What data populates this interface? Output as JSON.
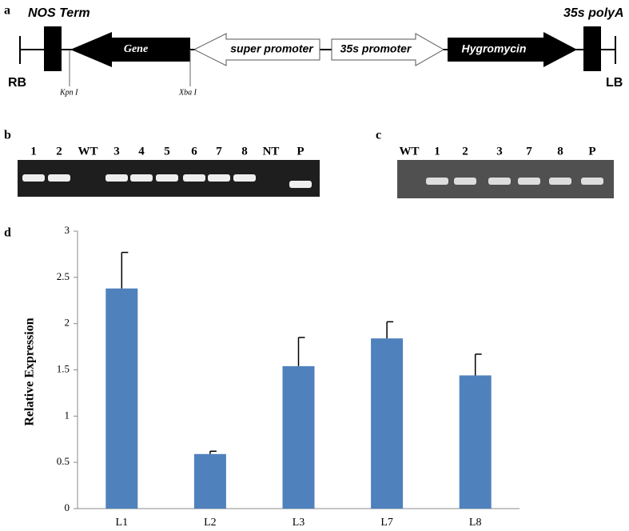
{
  "panel_a": {
    "label": "a",
    "nos_term": "NOS Term",
    "polya": "35s polyA",
    "rb": "RB",
    "lb": "LB",
    "kpn": "Kpn I",
    "xba": "Xba I",
    "gene": "Gene",
    "super_promoter": "super promoter",
    "promoter_35s": "35s promoter",
    "hygromycin": "Hygromycin"
  },
  "panel_b": {
    "label": "b",
    "lanes": [
      "1",
      "2",
      "WT",
      "3",
      "4",
      "5",
      "6",
      "7",
      "8",
      "NT",
      "P"
    ]
  },
  "panel_c": {
    "label": "c",
    "lanes": [
      "WT",
      "1",
      "2",
      "3",
      "7",
      "8",
      "P"
    ]
  },
  "panel_d": {
    "label": "d"
  },
  "chart_data": {
    "type": "bar",
    "y_label": "Relative Expression",
    "categories": [
      "L1",
      "L2",
      "L3",
      "L7",
      "L8"
    ],
    "values": [
      2.38,
      0.59,
      1.54,
      1.84,
      1.44
    ],
    "errors": [
      0.39,
      0.03,
      0.31,
      0.18,
      0.23
    ],
    "color": "#4f81bd",
    "ylim": [
      0,
      3
    ],
    "yticks": [
      0,
      0.5,
      1,
      1.5,
      2,
      2.5,
      3
    ],
    "grid": false
  }
}
